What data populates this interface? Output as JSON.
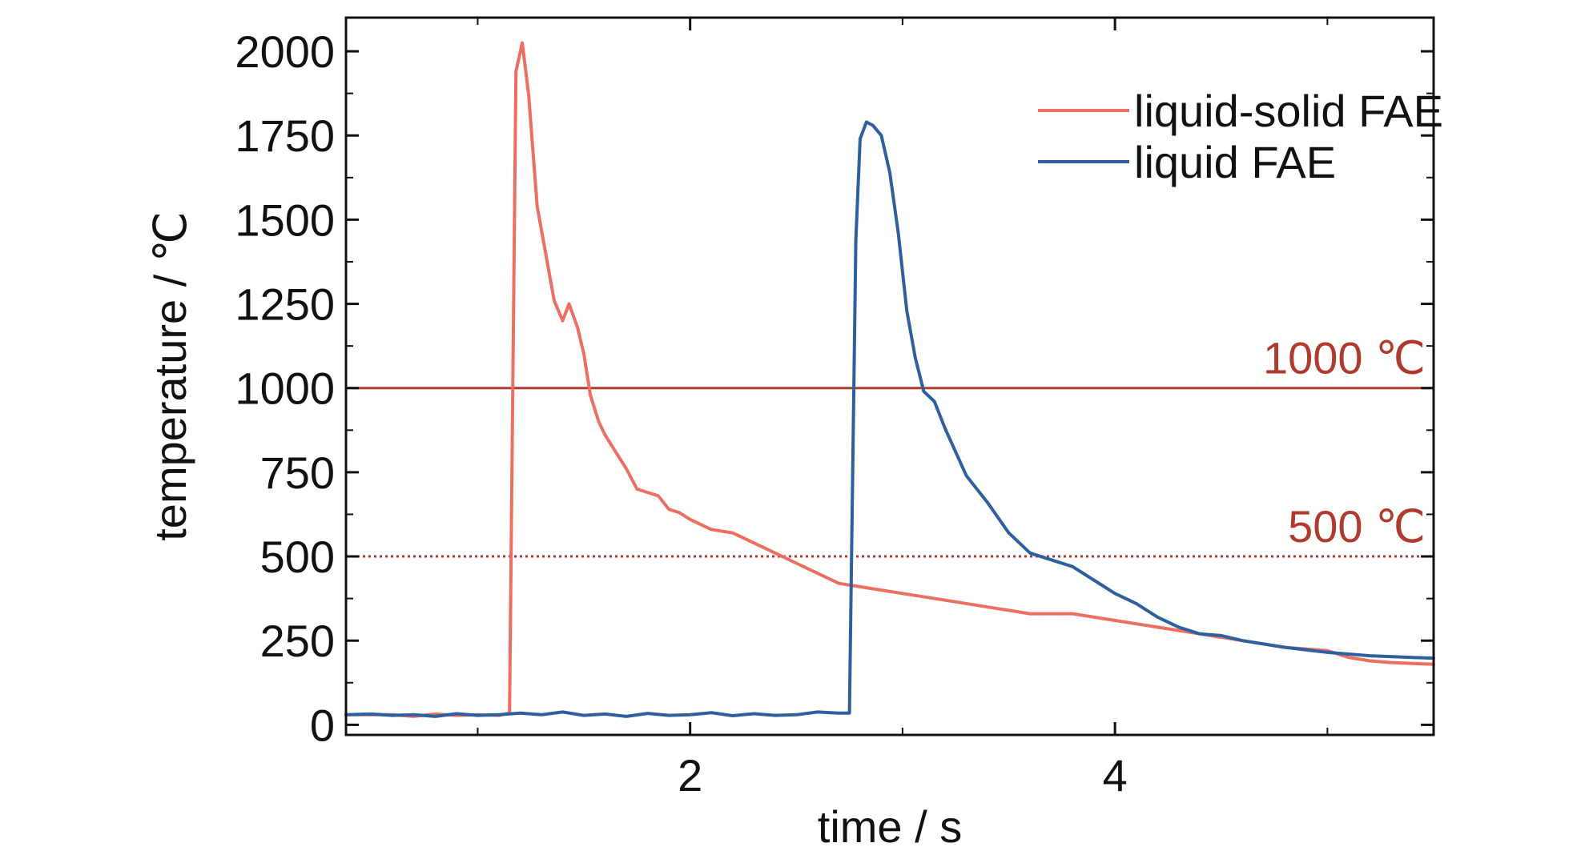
{
  "chart_data": {
    "type": "line",
    "title": "",
    "xlabel": "time / s",
    "ylabel": "temperature / ℃",
    "xlim": [
      0.38,
      5.5
    ],
    "ylim": [
      -30,
      2100
    ],
    "x_ticks": [
      2,
      4
    ],
    "y_ticks": [
      0,
      250,
      500,
      750,
      1000,
      1250,
      1500,
      1750,
      2000
    ],
    "grid": false,
    "legend_position": "top-right",
    "reference_lines": [
      {
        "value": 1000,
        "label": "1000 ℃",
        "style": "solid",
        "color": "#b03a2e"
      },
      {
        "value": 500,
        "label": "500 ℃",
        "style": "dotted",
        "color": "#b03a2e"
      }
    ],
    "series": [
      {
        "name": "liquid-solid FAE",
        "color": "#ec6f62",
        "x": [
          0.38,
          0.5,
          0.6,
          0.7,
          0.8,
          0.9,
          1.0,
          1.1,
          1.15,
          1.18,
          1.21,
          1.24,
          1.28,
          1.32,
          1.36,
          1.4,
          1.43,
          1.47,
          1.5,
          1.53,
          1.57,
          1.6,
          1.65,
          1.7,
          1.75,
          1.8,
          1.85,
          1.9,
          1.95,
          2.0,
          2.1,
          2.2,
          2.3,
          2.4,
          2.5,
          2.6,
          2.7,
          2.8,
          2.9,
          3.0,
          3.2,
          3.4,
          3.6,
          3.8,
          4.0,
          4.2,
          4.4,
          4.6,
          4.8,
          5.0,
          5.1,
          5.2,
          5.3,
          5.4,
          5.5
        ],
        "y": [
          30,
          30,
          30,
          25,
          32,
          28,
          30,
          28,
          35,
          1940,
          2025,
          1870,
          1540,
          1400,
          1260,
          1200,
          1250,
          1180,
          1100,
          980,
          900,
          860,
          810,
          760,
          700,
          690,
          680,
          640,
          630,
          610,
          580,
          570,
          540,
          510,
          480,
          450,
          420,
          410,
          400,
          390,
          370,
          350,
          330,
          330,
          310,
          290,
          270,
          250,
          230,
          220,
          200,
          190,
          185,
          182,
          180
        ]
      },
      {
        "name": "liquid FAE",
        "color": "#2e5f9e",
        "x": [
          0.38,
          0.5,
          0.6,
          0.7,
          0.8,
          0.9,
          1.0,
          1.1,
          1.2,
          1.3,
          1.4,
          1.5,
          1.6,
          1.7,
          1.8,
          1.9,
          2.0,
          2.1,
          2.2,
          2.3,
          2.4,
          2.5,
          2.6,
          2.7,
          2.75,
          2.78,
          2.8,
          2.83,
          2.86,
          2.9,
          2.94,
          2.98,
          3.02,
          3.06,
          3.1,
          3.15,
          3.2,
          3.3,
          3.4,
          3.5,
          3.6,
          3.7,
          3.8,
          3.9,
          4.0,
          4.1,
          4.2,
          4.3,
          4.4,
          4.5,
          4.6,
          4.8,
          5.0,
          5.2,
          5.4,
          5.5
        ],
        "y": [
          30,
          32,
          28,
          30,
          25,
          33,
          28,
          30,
          35,
          30,
          38,
          28,
          32,
          25,
          34,
          28,
          30,
          36,
          27,
          33,
          28,
          30,
          38,
          35,
          35,
          1440,
          1740,
          1790,
          1780,
          1750,
          1640,
          1460,
          1230,
          1090,
          990,
          960,
          880,
          740,
          660,
          570,
          510,
          490,
          470,
          430,
          390,
          360,
          320,
          290,
          270,
          265,
          250,
          230,
          215,
          205,
          200,
          198
        ]
      }
    ]
  }
}
